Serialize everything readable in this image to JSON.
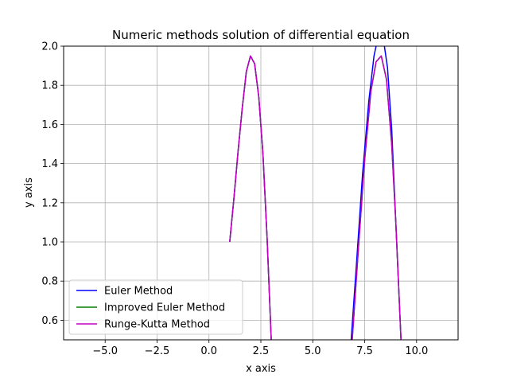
{
  "chart_data": {
    "type": "line",
    "title": "Numeric methods solution of differential equation",
    "xlabel": "x axis",
    "ylabel": "y axis",
    "xlim": [
      -7,
      12
    ],
    "ylim": [
      0.5,
      2.0
    ],
    "xticks": [
      -5.0,
      -2.5,
      0.0,
      2.5,
      5.0,
      7.5,
      10.0
    ],
    "xtick_labels": [
      "−5.0",
      "−2.5",
      "0.0",
      "2.5",
      "5.0",
      "7.5",
      "10.0"
    ],
    "yticks": [
      0.6,
      0.8,
      1.0,
      1.2,
      1.4,
      1.6,
      1.8,
      2.0
    ],
    "ytick_labels": [
      "0.6",
      "0.8",
      "1.0",
      "1.2",
      "1.4",
      "1.6",
      "1.8",
      "2.0"
    ],
    "grid": true,
    "legend_position": "lower-left",
    "series": [
      {
        "name": "Euler Method",
        "color": "#0000ff",
        "segments": [
          [
            [
              1.0,
              1.0
            ],
            [
              1.2,
              1.22
            ],
            [
              1.4,
              1.46
            ],
            [
              1.6,
              1.68
            ],
            [
              1.8,
              1.87
            ],
            [
              2.0,
              1.95
            ],
            [
              2.2,
              1.91
            ],
            [
              2.4,
              1.74
            ],
            [
              2.6,
              1.45
            ],
            [
              2.8,
              1.02
            ],
            [
              3.0,
              0.5
            ]
          ],
          [
            [
              6.85,
              0.5
            ],
            [
              7.1,
              0.88
            ],
            [
              7.4,
              1.35
            ],
            [
              7.7,
              1.72
            ],
            [
              7.95,
              1.95
            ],
            [
              8.05,
              2.0
            ]
          ],
          [
            [
              8.45,
              2.0
            ],
            [
              8.6,
              1.89
            ],
            [
              8.8,
              1.58
            ],
            [
              9.0,
              1.1
            ],
            [
              9.25,
              0.5
            ]
          ]
        ]
      },
      {
        "name": "Improved Euler Method",
        "color": "#008000",
        "segments": [
          [
            [
              1.0,
              1.0
            ],
            [
              1.2,
              1.22
            ],
            [
              1.4,
              1.46
            ],
            [
              1.6,
              1.68
            ],
            [
              1.8,
              1.87
            ],
            [
              2.0,
              1.95
            ],
            [
              2.2,
              1.91
            ],
            [
              2.4,
              1.74
            ],
            [
              2.6,
              1.45
            ],
            [
              2.8,
              1.02
            ],
            [
              3.0,
              0.5
            ]
          ],
          [
            [
              6.9,
              0.5
            ],
            [
              7.2,
              0.97
            ],
            [
              7.5,
              1.42
            ],
            [
              7.8,
              1.77
            ],
            [
              8.05,
              1.92
            ],
            [
              8.3,
              1.95
            ],
            [
              8.55,
              1.83
            ],
            [
              8.8,
              1.5
            ],
            [
              9.0,
              1.1
            ],
            [
              9.25,
              0.5
            ]
          ]
        ]
      },
      {
        "name": "Runge-Kutta Method",
        "color": "#bf00bf",
        "segments": [
          [
            [
              1.0,
              1.0
            ],
            [
              1.2,
              1.22
            ],
            [
              1.4,
              1.46
            ],
            [
              1.6,
              1.68
            ],
            [
              1.8,
              1.87
            ],
            [
              2.0,
              1.95
            ],
            [
              2.2,
              1.91
            ],
            [
              2.4,
              1.74
            ],
            [
              2.6,
              1.45
            ],
            [
              2.8,
              1.02
            ],
            [
              3.0,
              0.5
            ]
          ],
          [
            [
              6.9,
              0.5
            ],
            [
              7.2,
              0.97
            ],
            [
              7.5,
              1.42
            ],
            [
              7.8,
              1.77
            ],
            [
              8.05,
              1.92
            ],
            [
              8.3,
              1.95
            ],
            [
              8.55,
              1.83
            ],
            [
              8.8,
              1.5
            ],
            [
              9.0,
              1.1
            ],
            [
              9.25,
              0.5
            ]
          ]
        ]
      }
    ]
  }
}
